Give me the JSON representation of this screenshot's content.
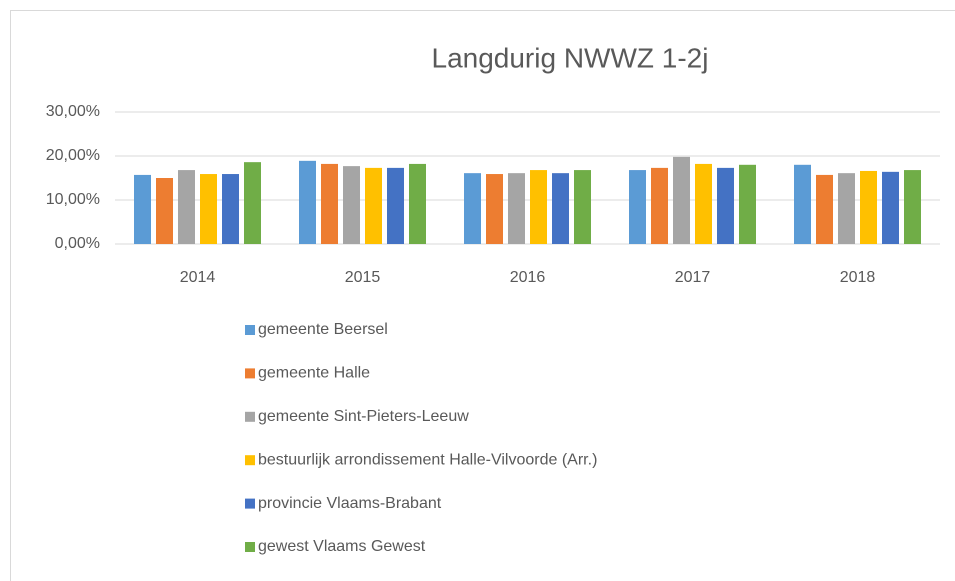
{
  "chart_data": {
    "type": "bar",
    "title": "Langdurig NWWZ 1-2j",
    "categories": [
      "2014",
      "2015",
      "2016",
      "2017",
      "2018"
    ],
    "series": [
      {
        "name": "gemeente Beersel",
        "color": "#5b9bd5",
        "values": [
          15.7,
          18.9,
          16.1,
          16.8,
          18.0
        ]
      },
      {
        "name": "gemeente Halle",
        "color": "#ed7d31",
        "values": [
          15.0,
          18.2,
          15.9,
          17.3,
          15.7
        ]
      },
      {
        "name": "gemeente Sint-Pieters-Leeuw",
        "color": "#a5a5a5",
        "values": [
          16.8,
          17.7,
          16.1,
          19.8,
          16.1
        ]
      },
      {
        "name": "bestuurlijk arrondissement Halle-Vilvoorde (Arr.)",
        "color": "#ffc000",
        "values": [
          15.9,
          17.3,
          16.8,
          18.2,
          16.6
        ]
      },
      {
        "name": "provincie Vlaams-Brabant",
        "color": "#4472c4",
        "values": [
          15.9,
          17.3,
          16.1,
          17.3,
          16.4
        ]
      },
      {
        "name": "gewest Vlaams Gewest",
        "color": "#70ad47",
        "values": [
          18.6,
          18.2,
          16.8,
          18.0,
          16.8
        ]
      }
    ],
    "ylim": [
      0,
      30
    ],
    "yticks": [
      {
        "value": 0,
        "label": "0,00%"
      },
      {
        "value": 10,
        "label": "10,00%"
      },
      {
        "value": 20,
        "label": "20,00%"
      },
      {
        "value": 30,
        "label": "30,00%"
      }
    ],
    "grid": true,
    "legend": "bottom"
  }
}
